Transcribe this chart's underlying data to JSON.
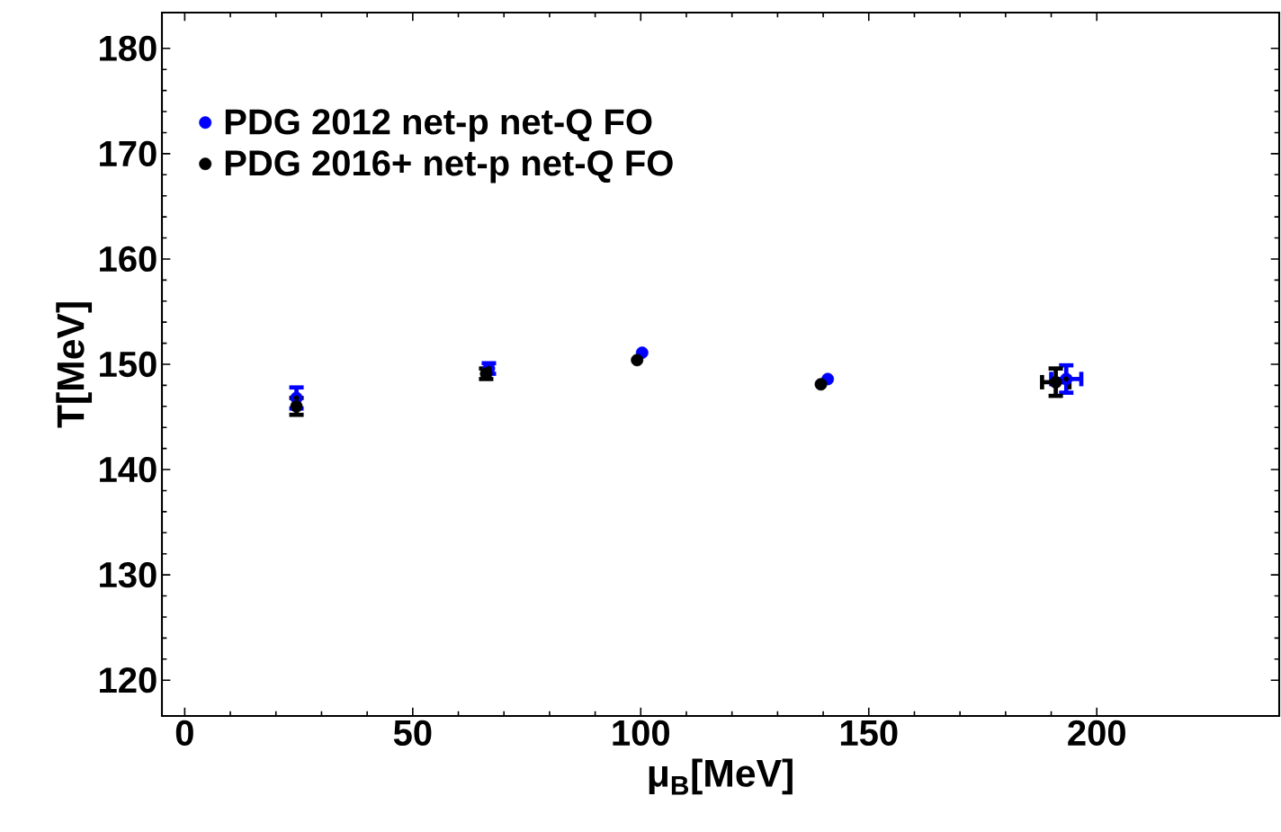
{
  "chart_data": {
    "type": "scatter",
    "xlabel": "μ$_{B}$[MeV]",
    "ylabel": "T[MeV]",
    "xlim": [
      -5,
      240
    ],
    "ylim": [
      116.6,
      183.4
    ],
    "xticks": [
      0,
      50,
      100,
      150,
      200
    ],
    "yticks": [
      120,
      130,
      140,
      150,
      160,
      170,
      180
    ],
    "grid": false,
    "legend": "top left",
    "marker": "circle",
    "series": [
      {
        "name": "PDG 2012 net-p net-Q FO",
        "color": "#0000ff",
        "x": [
          24.5,
          66.7,
          100.3,
          141.0,
          193.3
        ],
        "values": [
          146.8,
          149.6,
          151.1,
          148.6,
          148.6
        ],
        "errors": [
          1.0,
          0.5,
          null,
          null,
          1.3
        ],
        "xerrors": [
          null,
          null,
          null,
          null,
          3.3
        ]
      },
      {
        "name": "PDG 2016+ net-p net-Q FO",
        "color": "#000000",
        "x": [
          24.5,
          66.1,
          99.2,
          139.5,
          191.0
        ],
        "values": [
          146.0,
          149.1,
          150.4,
          148.1,
          148.3
        ],
        "errors": [
          0.8,
          0.5,
          null,
          null,
          1.3
        ],
        "xerrors": [
          null,
          null,
          null,
          null,
          3.0
        ]
      }
    ]
  }
}
